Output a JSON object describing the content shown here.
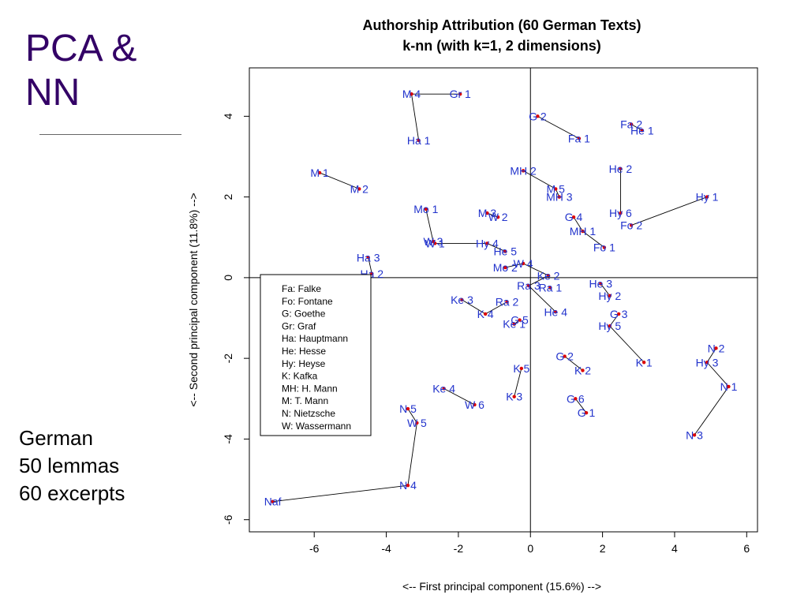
{
  "slide": {
    "title_lines": [
      "PCA &",
      "NN"
    ],
    "notes": [
      "German",
      "50 lemmas",
      "60 excerpts"
    ]
  },
  "chart_data": {
    "type": "scatter",
    "title": "Authorship Attribution (60 German Texts)",
    "subtitle": "k-nn (with k=1, 2 dimensions)",
    "xlabel": "<-- First principal component (15.6%) -->",
    "ylabel": "<-- Second principal component (11.8%) -->",
    "xlim": [
      -7.8,
      6.3
    ],
    "ylim": [
      -6.3,
      5.2
    ],
    "xticks": [
      -6,
      -4,
      -2,
      0,
      2,
      4,
      6
    ],
    "yticks": [
      -6,
      -4,
      -2,
      0,
      2,
      4
    ],
    "reference_lines": {
      "x": 0,
      "y": 0
    },
    "point_color": "#dd0000",
    "label_color": "#2233cc",
    "legend_position": "lower-left",
    "legend": [
      "Fa: Falke",
      "Fo: Fontane",
      "G: Goethe",
      "Gr: Graf",
      "Ha: Hauptmann",
      "He: Hesse",
      "Hy: Heyse",
      "K: Kafka",
      "MH: H. Mann",
      "M: T. Mann",
      "N: Nietzsche",
      "W: Wassermann"
    ],
    "points": [
      {
        "label": "Gr 1",
        "x": -1.95,
        "y": 4.55
      },
      {
        "label": "M 4",
        "x": -3.3,
        "y": 4.55
      },
      {
        "label": "Ha 1",
        "x": -3.1,
        "y": 3.4
      },
      {
        "label": "G 2",
        "x": 0.2,
        "y": 4.0
      },
      {
        "label": "Fa 1",
        "x": 1.35,
        "y": 3.45
      },
      {
        "label": "Fa 2",
        "x": 2.8,
        "y": 3.8
      },
      {
        "label": "He 1",
        "x": 3.1,
        "y": 3.65
      },
      {
        "label": "M 1",
        "x": -5.85,
        "y": 2.6
      },
      {
        "label": "M 2",
        "x": -4.75,
        "y": 2.2
      },
      {
        "label": "MH 2",
        "x": -0.2,
        "y": 2.65
      },
      {
        "label": "M 5",
        "x": 0.7,
        "y": 2.2
      },
      {
        "label": "MH 3",
        "x": 0.8,
        "y": 2.0
      },
      {
        "label": "He 2",
        "x": 2.5,
        "y": 2.7
      },
      {
        "label": "Hy 1",
        "x": 4.9,
        "y": 2.0
      },
      {
        "label": "Hy 6",
        "x": 2.5,
        "y": 1.6
      },
      {
        "label": "Fo 2",
        "x": 2.8,
        "y": 1.3
      },
      {
        "label": "Mo 1",
        "x": -2.9,
        "y": 1.7
      },
      {
        "label": "M 3",
        "x": -1.2,
        "y": 1.6
      },
      {
        "label": "W 2",
        "x": -0.9,
        "y": 1.5
      },
      {
        "label": "G 4",
        "x": 1.2,
        "y": 1.5
      },
      {
        "label": "MH 1",
        "x": 1.45,
        "y": 1.15
      },
      {
        "label": "W 3",
        "x": -2.7,
        "y": 0.9
      },
      {
        "label": "W 1",
        "x": -2.65,
        "y": 0.85
      },
      {
        "label": "Hy 4",
        "x": -1.2,
        "y": 0.85
      },
      {
        "label": "He 5",
        "x": -0.7,
        "y": 0.65
      },
      {
        "label": "Fo 1",
        "x": 2.05,
        "y": 0.75
      },
      {
        "label": "Ha 3",
        "x": -4.5,
        "y": 0.5
      },
      {
        "label": "Ha 2",
        "x": -4.4,
        "y": 0.1
      },
      {
        "label": "W 4",
        "x": -0.2,
        "y": 0.35
      },
      {
        "label": "Mo 2",
        "x": -0.7,
        "y": 0.25
      },
      {
        "label": "Ke 2",
        "x": 0.5,
        "y": 0.05
      },
      {
        "label": "Ra 3",
        "x": -0.05,
        "y": -0.2
      },
      {
        "label": "Ra 1",
        "x": 0.55,
        "y": -0.25
      },
      {
        "label": "He 3",
        "x": 1.95,
        "y": -0.15
      },
      {
        "label": "Hy 2",
        "x": 2.2,
        "y": -0.45
      },
      {
        "label": "Ke 3",
        "x": -1.9,
        "y": -0.55
      },
      {
        "label": "Ra 2",
        "x": -0.65,
        "y": -0.6
      },
      {
        "label": "K 4",
        "x": -1.25,
        "y": -0.9
      },
      {
        "label": "He 4",
        "x": 0.7,
        "y": -0.85
      },
      {
        "label": "G 3",
        "x": 2.45,
        "y": -0.9
      },
      {
        "label": "Hy 5",
        "x": 2.2,
        "y": -1.2
      },
      {
        "label": "G 5",
        "x": -0.3,
        "y": -1.05
      },
      {
        "label": "Ke 1",
        "x": -0.45,
        "y": -1.15
      },
      {
        "label": "G 2",
        "x": 0.95,
        "y": -1.95
      },
      {
        "label": "K 2",
        "x": 1.45,
        "y": -2.3
      },
      {
        "label": "K 1",
        "x": 3.15,
        "y": -2.1
      },
      {
        "label": "N 2",
        "x": 5.15,
        "y": -1.75
      },
      {
        "label": "Hy 3",
        "x": 4.9,
        "y": -2.1
      },
      {
        "label": "K 5",
        "x": -0.25,
        "y": -2.25
      },
      {
        "label": "K 3",
        "x": -0.45,
        "y": -2.95
      },
      {
        "label": "N 1",
        "x": 5.5,
        "y": -2.7
      },
      {
        "label": "Ke 4",
        "x": -2.4,
        "y": -2.75
      },
      {
        "label": "W 6",
        "x": -1.55,
        "y": -3.15
      },
      {
        "label": "G 6",
        "x": 1.25,
        "y": -3.0
      },
      {
        "label": "G 1",
        "x": 1.55,
        "y": -3.35
      },
      {
        "label": "N 5",
        "x": -3.4,
        "y": -3.25
      },
      {
        "label": "W 5",
        "x": -3.15,
        "y": -3.6
      },
      {
        "label": "N 3",
        "x": 4.55,
        "y": -3.9
      },
      {
        "label": "N 4",
        "x": -3.4,
        "y": -5.15
      },
      {
        "label": "Naf",
        "x": -7.15,
        "y": -5.55
      }
    ],
    "links": [
      [
        0,
        1
      ],
      [
        1,
        2
      ],
      [
        3,
        4
      ],
      [
        5,
        6
      ],
      [
        7,
        8
      ],
      [
        9,
        10
      ],
      [
        10,
        11
      ],
      [
        12,
        14
      ],
      [
        13,
        15
      ],
      [
        16,
        21
      ],
      [
        17,
        18
      ],
      [
        19,
        20
      ],
      [
        22,
        23
      ],
      [
        23,
        24
      ],
      [
        20,
        25
      ],
      [
        26,
        27
      ],
      [
        28,
        29
      ],
      [
        28,
        30
      ],
      [
        30,
        31
      ],
      [
        33,
        34
      ],
      [
        35,
        37
      ],
      [
        36,
        37
      ],
      [
        31,
        38
      ],
      [
        39,
        40
      ],
      [
        40,
        45
      ],
      [
        41,
        42
      ],
      [
        43,
        44
      ],
      [
        46,
        47
      ],
      [
        47,
        50
      ],
      [
        48,
        49
      ],
      [
        51,
        52
      ],
      [
        53,
        54
      ],
      [
        55,
        56
      ],
      [
        56,
        58
      ],
      [
        58,
        59
      ],
      [
        50,
        57
      ]
    ]
  }
}
